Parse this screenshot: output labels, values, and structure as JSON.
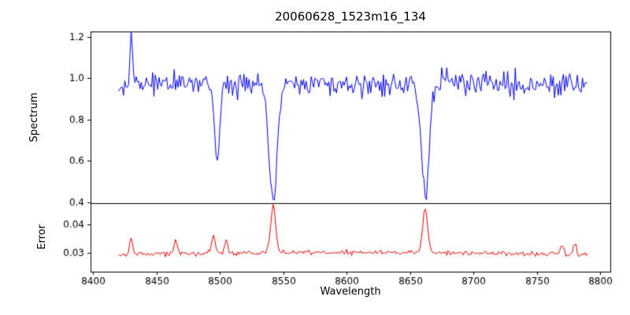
{
  "figure": {
    "background": "#ffffff",
    "axis_color": "#000000"
  },
  "chart_data": [
    {
      "type": "line",
      "name": "spectrum",
      "title": "20060628_1523m16_134",
      "ylabel": "Spectrum",
      "color": "#0000ee",
      "xlim": [
        8398,
        8808
      ],
      "ylim": [
        0.395,
        1.225
      ],
      "yticks": [
        0.4,
        0.6,
        0.8,
        1.0,
        1.2
      ],
      "yticklabels": [
        "0.4",
        "0.6",
        "0.8",
        "1.0",
        "1.2"
      ],
      "x_start": 8420,
      "x_end": 8790,
      "x_step": 1,
      "baseline": 0.972,
      "noise_sigma": 0.028,
      "seed": 42,
      "features": [
        {
          "center": 8430,
          "amp": 0.21,
          "width": 1.0,
          "label": "emission-spike"
        },
        {
          "center": 8498,
          "amp": -0.36,
          "width": 2.0,
          "label": "absorption-line-8498"
        },
        {
          "center": 8542,
          "amp": -0.555,
          "width": 3.2,
          "label": "absorption-line-8542"
        },
        {
          "center": 8662,
          "amp": -0.53,
          "width": 3.0,
          "label": "absorption-line-8662"
        }
      ]
    },
    {
      "type": "line",
      "name": "error",
      "ylabel": "Error",
      "xlabel": "Wavelength",
      "color": "#ee0000",
      "xlim": [
        8398,
        8808
      ],
      "ylim": [
        0.0235,
        0.0475
      ],
      "yticks": [
        0.03,
        0.04
      ],
      "yticklabels": [
        "0.03",
        "0.04"
      ],
      "xticks": [
        8400,
        8450,
        8500,
        8550,
        8600,
        8650,
        8700,
        8750,
        8800
      ],
      "xticklabels": [
        "8400",
        "8450",
        "8500",
        "8550",
        "8600",
        "8650",
        "8700",
        "8750",
        "8800"
      ],
      "x_start": 8420,
      "x_end": 8790,
      "x_step": 1,
      "baseline": 0.029,
      "noise_sigma": 0.0004,
      "seed": 7,
      "features": [
        {
          "center": 8600,
          "amp": 0.0013,
          "width": 130,
          "label": "broad-trend"
        },
        {
          "center": 8430,
          "amp": 0.0055,
          "width": 1.2,
          "label": "error-spike-8430"
        },
        {
          "center": 8465,
          "amp": 0.005,
          "width": 1.2,
          "label": "error-spike-8465"
        },
        {
          "center": 8495,
          "amp": 0.0065,
          "width": 1.5,
          "label": "error-spike-8495"
        },
        {
          "center": 8505,
          "amp": 0.0045,
          "width": 1.2,
          "label": "error-spike-8505"
        },
        {
          "center": 8542,
          "amp": 0.016,
          "width": 2.0,
          "label": "error-spike-8542"
        },
        {
          "center": 8662,
          "amp": 0.015,
          "width": 2.0,
          "label": "error-spike-8662"
        },
        {
          "center": 8770,
          "amp": 0.0035,
          "width": 1.2,
          "label": "error-spike-8770"
        },
        {
          "center": 8780,
          "amp": 0.0045,
          "width": 1.2,
          "label": "error-spike-8780"
        }
      ]
    }
  ]
}
